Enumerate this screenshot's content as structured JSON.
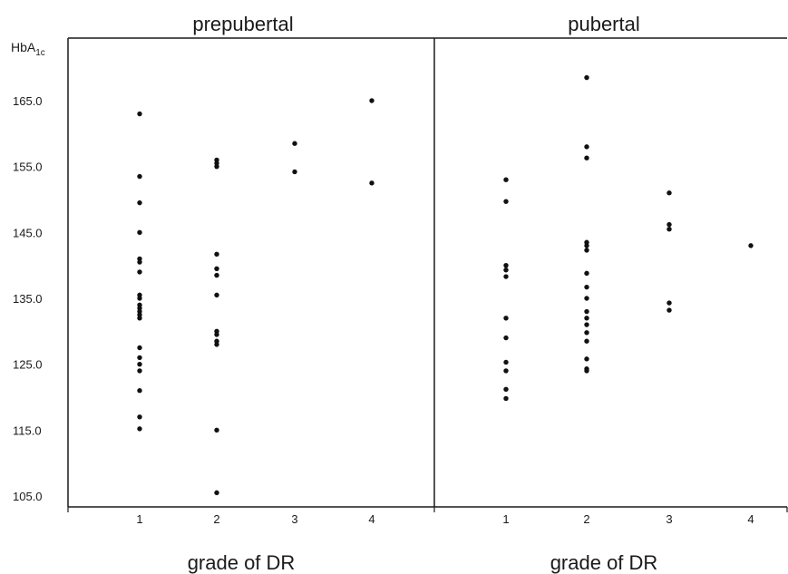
{
  "chart_data": {
    "type": "scatter",
    "ylabel": "HbA",
    "ylabel_subscript": "1c",
    "ylim": [
      103,
      178
    ],
    "yticks": [
      "105.0",
      "115.0",
      "125.0",
      "135.0",
      "145.0",
      "155.0",
      "165.0"
    ],
    "categories": [
      "1",
      "2",
      "3",
      "4"
    ],
    "grid": false,
    "panels": [
      {
        "title": "prepubertal",
        "xlabel": "grade of DR",
        "points": {
          "1": [
            163.0,
            153.5,
            149.5,
            145.0,
            141.0,
            140.5,
            139.0,
            135.5,
            135.0,
            134.0,
            133.5,
            133.0,
            132.5,
            132.0,
            127.5,
            126.0,
            125.0,
            124.0,
            121.0,
            117.0,
            115.2
          ],
          "2": [
            156.0,
            155.5,
            155.0,
            141.7,
            139.5,
            138.5,
            135.5,
            130.0,
            129.5,
            128.5,
            128.0,
            115.0,
            105.5
          ],
          "3": [
            158.5,
            154.2
          ],
          "4": [
            165.0,
            152.5
          ]
        }
      },
      {
        "title": "pubertal",
        "xlabel": "grade of DR",
        "points": {
          "1": [
            153.0,
            149.7,
            140.0,
            139.3,
            138.3,
            132.0,
            129.0,
            125.3,
            124.0,
            121.2,
            119.8
          ],
          "2": [
            168.5,
            158.0,
            156.3,
            143.5,
            143.0,
            142.3,
            138.8,
            136.7,
            135.0,
            133.0,
            132.0,
            131.0,
            129.8,
            128.5,
            125.8,
            124.3,
            124.0
          ],
          "3": [
            151.0,
            146.2,
            145.5,
            134.3,
            133.2
          ],
          "4": [
            143.0
          ]
        }
      }
    ]
  }
}
